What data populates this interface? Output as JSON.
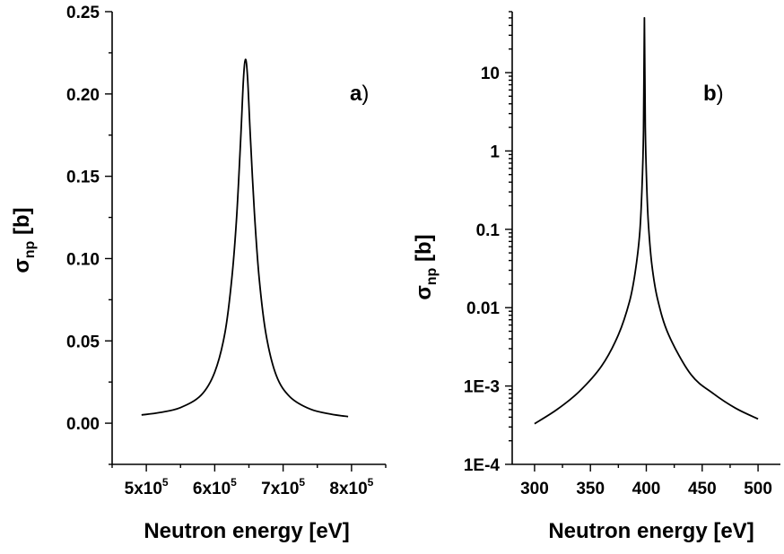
{
  "chart_data": [
    {
      "type": "line",
      "panel_label": "a",
      "panel_paren": ")",
      "ylabel_main": "σ",
      "ylabel_sub": "np",
      "ylabel_unit": " [b]",
      "xlabel": "Neutron energy [eV]",
      "xlim": [
        450000,
        850000
      ],
      "ylim": [
        -0.025,
        0.25
      ],
      "xticks": [
        {
          "value": 500000,
          "mantissa": "5x10",
          "exp": "5"
        },
        {
          "value": 600000,
          "mantissa": "6x10",
          "exp": "5"
        },
        {
          "value": 700000,
          "mantissa": "7x10",
          "exp": "5"
        },
        {
          "value": 800000,
          "mantissa": "8x10",
          "exp": "5"
        }
      ],
      "yticks": [
        {
          "value": 0.0,
          "label": "0.00"
        },
        {
          "value": 0.05,
          "label": "0.05"
        },
        {
          "value": 0.1,
          "label": "0.10"
        },
        {
          "value": 0.15,
          "label": "0.15"
        },
        {
          "value": 0.2,
          "label": "0.20"
        },
        {
          "value": 0.25,
          "label": "0.25"
        }
      ],
      "series": [
        {
          "x": [
            493000,
            520000,
            550000,
            580000,
            600000,
            615000,
            625000,
            632000,
            638000,
            642000,
            645000,
            648000,
            652000,
            658000,
            665000,
            675000,
            690000,
            710000,
            740000,
            770000,
            795000
          ],
          "y": [
            0.005,
            0.0065,
            0.0095,
            0.017,
            0.031,
            0.055,
            0.088,
            0.125,
            0.173,
            0.209,
            0.221,
            0.21,
            0.175,
            0.128,
            0.088,
            0.054,
            0.029,
            0.016,
            0.0085,
            0.0055,
            0.004
          ]
        }
      ],
      "color": "#000000"
    },
    {
      "type": "line",
      "panel_label": "b",
      "panel_paren": ")",
      "ylabel_main": "σ",
      "ylabel_sub": "np",
      "ylabel_unit": " [b]",
      "xlabel": "Neutron energy [eV]",
      "xlim": [
        280,
        520
      ],
      "ylim": [
        0.0001,
        60
      ],
      "yscale": "log",
      "xticks": [
        {
          "value": 300,
          "label": "300"
        },
        {
          "value": 350,
          "label": "350"
        },
        {
          "value": 400,
          "label": "400"
        },
        {
          "value": 450,
          "label": "450"
        },
        {
          "value": 500,
          "label": "500"
        }
      ],
      "yticks": [
        {
          "value": 0.0001,
          "label": "1E-4"
        },
        {
          "value": 0.001,
          "label": "1E-3"
        },
        {
          "value": 0.01,
          "label": "0.01"
        },
        {
          "value": 0.1,
          "label": "0.1"
        },
        {
          "value": 1,
          "label": "1"
        },
        {
          "value": 10,
          "label": "10"
        }
      ],
      "series": [
        {
          "x": [
            300,
            320,
            340,
            360,
            375,
            385,
            390,
            394,
            396,
            397.5,
            398.3,
            399.1,
            400.5,
            402,
            405,
            410,
            420,
            440,
            460,
            480,
            500
          ],
          "y": [
            0.00033,
            0.0005,
            0.00085,
            0.0018,
            0.0045,
            0.012,
            0.028,
            0.085,
            0.3,
            1.8,
            50,
            2.0,
            0.32,
            0.11,
            0.035,
            0.013,
            0.0045,
            0.0014,
            0.0008,
            0.00052,
            0.00038
          ]
        }
      ],
      "color": "#000000"
    }
  ]
}
